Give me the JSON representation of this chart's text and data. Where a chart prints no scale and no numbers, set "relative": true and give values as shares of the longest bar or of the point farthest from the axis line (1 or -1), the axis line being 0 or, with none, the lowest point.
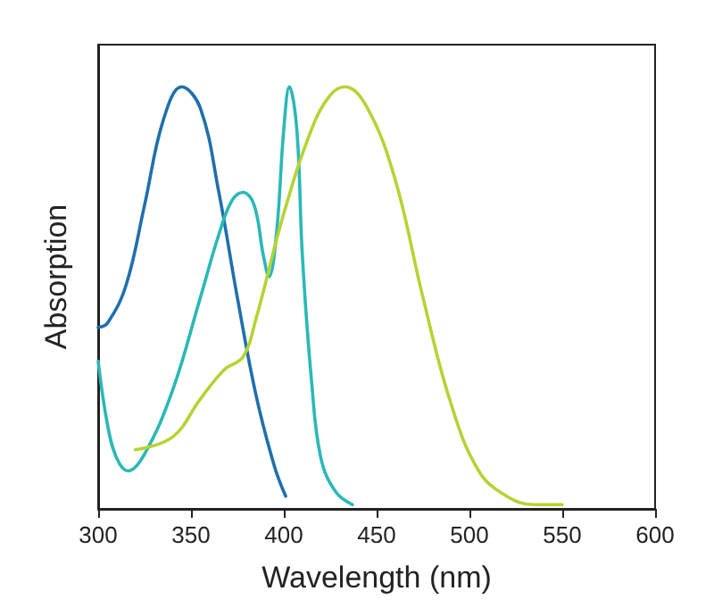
{
  "chart_data": {
    "type": "line",
    "relative": true,
    "xlabel": "Wavelength (nm)",
    "ylabel": "Absorption",
    "xlim": [
      300,
      600
    ],
    "xticks": [
      300,
      350,
      400,
      450,
      500,
      550,
      600
    ],
    "grid": false,
    "marker": "none",
    "line_style": "solid",
    "series": [
      {
        "color": "#1f6fad",
        "x": [
          300,
          305,
          315,
          325,
          335,
          345,
          355,
          365,
          375,
          385,
          395,
          401
        ],
        "values": [
          0.43,
          0.44,
          0.53,
          0.72,
          0.92,
          1.0,
          0.95,
          0.75,
          0.5,
          0.27,
          0.1,
          0.03
        ]
      },
      {
        "color": "#2ab8b8",
        "x": [
          300,
          305,
          310,
          316,
          325,
          340,
          355,
          365,
          372,
          378,
          384,
          389,
          392,
          396,
          400,
          403,
          407,
          410,
          415,
          420,
          428,
          437
        ],
        "values": [
          0.35,
          0.2,
          0.12,
          0.09,
          0.13,
          0.28,
          0.5,
          0.65,
          0.73,
          0.75,
          0.72,
          0.6,
          0.55,
          0.65,
          0.9,
          1.0,
          0.9,
          0.6,
          0.3,
          0.12,
          0.04,
          0.01
        ]
      },
      {
        "color": "#b5d333",
        "x": [
          320,
          340,
          355,
          368,
          378,
          385,
          400,
          415,
          425,
          433,
          445,
          460,
          475,
          490,
          505,
          520,
          535,
          550
        ],
        "values": [
          0.14,
          0.17,
          0.26,
          0.33,
          0.36,
          0.45,
          0.7,
          0.9,
          0.98,
          1.0,
          0.95,
          0.78,
          0.5,
          0.25,
          0.09,
          0.03,
          0.01,
          0.01
        ]
      }
    ]
  }
}
